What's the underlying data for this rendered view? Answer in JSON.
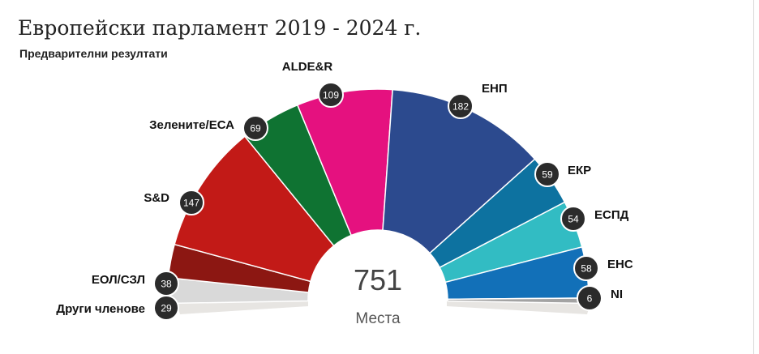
{
  "title": "Европейски парламент 2019 - 2024 г.",
  "subtitle": "Предварителни резултати",
  "chart_data": {
    "type": "pie",
    "variant": "parliament-hemicycle",
    "total": 751,
    "total_label": "Места",
    "series": [
      {
        "name": "Други членове",
        "value": 29,
        "color": "#d9d9d9"
      },
      {
        "name": "ЕОЛ/СЗЛ",
        "value": 38,
        "color": "#8c1712"
      },
      {
        "name": "S&D",
        "value": 147,
        "color": "#c21a17"
      },
      {
        "name": "Зелените/ЕСА",
        "value": 69,
        "color": "#0f7332"
      },
      {
        "name": "ALDE&R",
        "value": 109,
        "color": "#e5117f"
      },
      {
        "name": "ЕНП",
        "value": 182,
        "color": "#2c4a8e"
      },
      {
        "name": "ЕКР",
        "value": 59,
        "color": "#0d72a0"
      },
      {
        "name": "ЕСПД",
        "value": 54,
        "color": "#32bcc3"
      },
      {
        "name": "ЕНС",
        "value": 58,
        "color": "#1270b8"
      },
      {
        "name": "NI",
        "value": 6,
        "color": "#a3a3a3"
      }
    ]
  }
}
